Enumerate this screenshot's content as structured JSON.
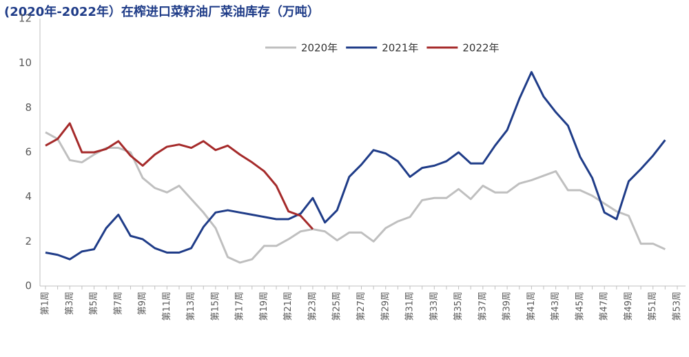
{
  "chart_data": {
    "type": "line",
    "title": "(2020年-2022年）在榨进口菜籽油厂菜油库存（万吨）",
    "categories": [
      "第1周",
      null,
      "第3周",
      null,
      "第5周",
      null,
      "第7周",
      null,
      "第9周",
      null,
      "第11周",
      null,
      "第13周",
      null,
      "第15周",
      null,
      "第17周",
      null,
      "第19周",
      null,
      "第21周",
      null,
      "第23周",
      null,
      "第25周",
      null,
      "第27周",
      null,
      "第29周",
      null,
      "第31周",
      null,
      "第33周",
      null,
      "第35周",
      null,
      "第37周",
      null,
      "第39周",
      null,
      "第41周",
      null,
      "第43周",
      null,
      "第45周",
      null,
      "第47周",
      null,
      "第49周",
      null,
      "第51周",
      null,
      "第53周"
    ],
    "series": [
      {
        "name": "2020年",
        "color": "#bfbfbf",
        "values": [
          6.9,
          6.6,
          5.65,
          5.55,
          5.9,
          6.2,
          6.2,
          6.0,
          4.85,
          4.4,
          4.2,
          4.5,
          3.9,
          3.3,
          2.6,
          1.3,
          1.05,
          1.2,
          1.8,
          1.8,
          2.1,
          2.45,
          2.55,
          2.45,
          2.05,
          2.4,
          2.4,
          2.0,
          2.6,
          2.9,
          3.1,
          3.85,
          3.95,
          3.95,
          4.35,
          3.9,
          4.5,
          4.2,
          4.2,
          4.6,
          4.75,
          4.95,
          5.15,
          4.3,
          4.3,
          4.05,
          3.7,
          3.35,
          3.15,
          1.9,
          1.9,
          1.65,
          null
        ]
      },
      {
        "name": "2021年",
        "color": "#1f3c88",
        "values": [
          1.5,
          1.4,
          1.2,
          1.55,
          1.65,
          2.6,
          3.2,
          2.25,
          2.1,
          1.7,
          1.5,
          1.5,
          1.7,
          2.65,
          3.3,
          3.4,
          3.3,
          3.2,
          3.1,
          3.0,
          3.0,
          3.25,
          3.95,
          2.85,
          3.4,
          4.9,
          5.45,
          6.1,
          5.95,
          5.6,
          4.9,
          5.3,
          5.4,
          5.6,
          6.0,
          5.5,
          5.5,
          6.3,
          7.0,
          8.4,
          9.6,
          8.5,
          7.8,
          7.2,
          5.8,
          4.85,
          3.3,
          3.0,
          4.7,
          5.25,
          5.85,
          6.55,
          null
        ]
      },
      {
        "name": "2022年",
        "color": "#a52a2a",
        "values": [
          6.3,
          6.6,
          7.3,
          6.0,
          6.0,
          6.15,
          6.5,
          5.85,
          5.4,
          5.9,
          6.25,
          6.35,
          6.2,
          6.5,
          6.1,
          6.3,
          5.9,
          5.55,
          5.15,
          4.5,
          3.35,
          3.15,
          2.55,
          null,
          null,
          null,
          null,
          null,
          null,
          null,
          null,
          null,
          null,
          null,
          null,
          null,
          null,
          null,
          null,
          null,
          null,
          null,
          null,
          null,
          null,
          null,
          null,
          null,
          null,
          null,
          null,
          null,
          null
        ]
      }
    ],
    "ylim": [
      0,
      12
    ],
    "yticks": [
      0,
      2,
      4,
      6,
      8,
      10,
      12
    ],
    "grid": false,
    "legend": "top"
  }
}
